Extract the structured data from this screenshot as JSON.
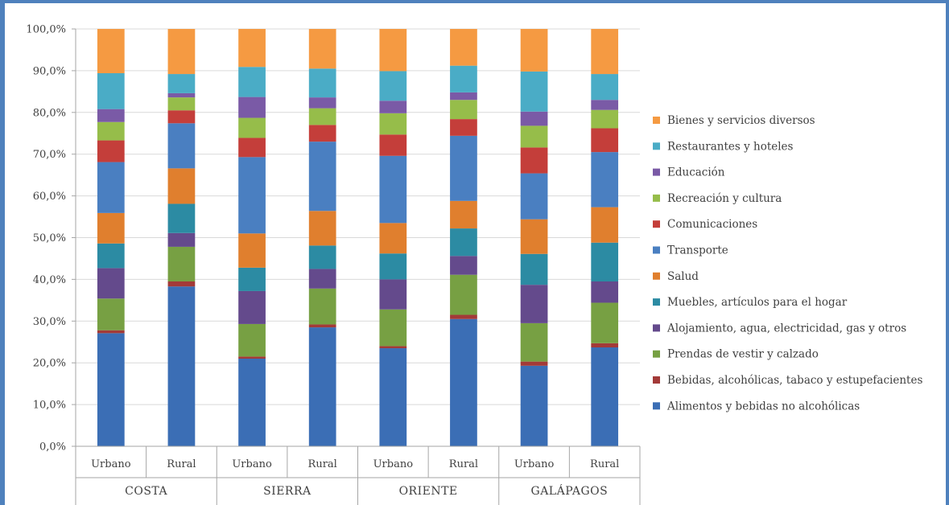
{
  "chart_data": {
    "type": "bar",
    "stacked": true,
    "percent": true,
    "title": "",
    "xlabel": "",
    "ylabel": "",
    "ylim": [
      0,
      100
    ],
    "y_ticks": [
      "0,0%",
      "10,0%",
      "20,0%",
      "30,0%",
      "40,0%",
      "50,0%",
      "60,0%",
      "70,0%",
      "80,0%",
      "90,0%",
      "100,0%"
    ],
    "groups": [
      {
        "label": "COSTA",
        "categories": [
          "Urbano",
          "Rural"
        ]
      },
      {
        "label": "SIERRA",
        "categories": [
          "Urbano",
          "Rural"
        ]
      },
      {
        "label": "ORIENTE",
        "categories": [
          "Urbano",
          "Rural"
        ]
      },
      {
        "label": "GALÁPAGOS",
        "categories": [
          "Urbano",
          "Rural"
        ]
      }
    ],
    "grid": true,
    "legend_position": "right",
    "series": [
      {
        "name": "Alimentos y bebidas no alcohólicas",
        "color": "#3b6eb5",
        "values": [
          27.1,
          38.3,
          21.0,
          28.5,
          23.5,
          30.5,
          19.3,
          23.7
        ]
      },
      {
        "name": "Bebidas, alcohólicas, tabaco y estupefacientes",
        "color": "#a33a38",
        "values": [
          0.7,
          1.2,
          0.5,
          0.7,
          0.5,
          1.0,
          1.0,
          1.0
        ]
      },
      {
        "name": "Prendas de vestir y calzado",
        "color": "#77a043",
        "values": [
          7.6,
          8.3,
          7.8,
          8.6,
          8.8,
          9.6,
          9.2,
          9.7
        ]
      },
      {
        "name": "Alojamiento, agua, electricidad, gas y otros",
        "color": "#644a8c",
        "values": [
          7.3,
          3.3,
          7.9,
          4.7,
          7.2,
          4.5,
          9.2,
          5.1
        ]
      },
      {
        "name": "Muebles, artículos para el hogar",
        "color": "#2c8ba3",
        "values": [
          5.9,
          7.0,
          5.6,
          5.6,
          6.2,
          6.6,
          7.4,
          9.3
        ]
      },
      {
        "name": "Salud",
        "color": "#e07f2e",
        "values": [
          7.3,
          8.5,
          8.2,
          8.3,
          7.3,
          6.6,
          8.3,
          8.5
        ]
      },
      {
        "name": "Transporte",
        "color": "#4a7fc1",
        "values": [
          12.2,
          10.8,
          18.3,
          16.6,
          16.1,
          15.6,
          11.0,
          13.2
        ]
      },
      {
        "name": "Comunicaciones",
        "color": "#c43e3a",
        "values": [
          5.2,
          3.1,
          4.6,
          4.0,
          5.1,
          4.0,
          6.2,
          5.7
        ]
      },
      {
        "name": "Recreación y cultura",
        "color": "#96bd4a",
        "values": [
          4.4,
          3.1,
          4.8,
          4.0,
          5.1,
          4.6,
          5.2,
          4.4
        ]
      },
      {
        "name": "Educación",
        "color": "#7a5aa6",
        "values": [
          3.1,
          1.0,
          5.0,
          2.6,
          3.0,
          1.8,
          3.4,
          2.4
        ]
      },
      {
        "name": "Restaurantes y hoteles",
        "color": "#4aacc6",
        "values": [
          8.6,
          4.6,
          7.2,
          6.9,
          7.1,
          6.4,
          9.6,
          6.2
        ]
      },
      {
        "name": "Bienes y servicios diversos",
        "color": "#f59a42",
        "values": [
          10.6,
          10.8,
          9.1,
          9.5,
          10.1,
          8.8,
          10.2,
          10.8
        ]
      }
    ]
  }
}
